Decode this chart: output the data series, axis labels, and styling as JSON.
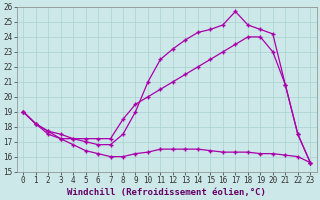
{
  "xlabel": "Windchill (Refroidissement éolien,°C)",
  "background_color": "#cce8e8",
  "grid_color": "#aad0d0",
  "line_color": "#aa00aa",
  "xlim": [
    -0.5,
    23.5
  ],
  "ylim": [
    15,
    26
  ],
  "xticks": [
    0,
    1,
    2,
    3,
    4,
    5,
    6,
    7,
    8,
    9,
    10,
    11,
    12,
    13,
    14,
    15,
    16,
    17,
    18,
    19,
    20,
    21,
    22,
    23
  ],
  "yticks": [
    15,
    16,
    17,
    18,
    19,
    20,
    21,
    22,
    23,
    24,
    25,
    26
  ],
  "line1_x": [
    0,
    1,
    2,
    3,
    4,
    5,
    6,
    7,
    8,
    9,
    10,
    11,
    12,
    13,
    14,
    15,
    16,
    17,
    18,
    19,
    20,
    21,
    22,
    23
  ],
  "line1_y": [
    19.0,
    18.2,
    17.7,
    17.2,
    17.2,
    17.2,
    17.2,
    17.2,
    18.5,
    19.5,
    20.0,
    20.5,
    21.0,
    21.5,
    22.0,
    22.5,
    23.0,
    23.5,
    24.0,
    24.0,
    23.0,
    20.8,
    17.5,
    15.6
  ],
  "line2_x": [
    0,
    1,
    2,
    3,
    4,
    5,
    6,
    7,
    8,
    9,
    10,
    11,
    12,
    13,
    14,
    15,
    16,
    17,
    18,
    19,
    20,
    21,
    22,
    23
  ],
  "line2_y": [
    19.0,
    18.2,
    17.7,
    17.5,
    17.2,
    17.0,
    16.8,
    16.8,
    17.5,
    19.0,
    21.0,
    22.5,
    23.2,
    23.8,
    24.3,
    24.5,
    24.8,
    25.7,
    24.8,
    24.5,
    24.2,
    20.8,
    17.5,
    15.6
  ],
  "line3_x": [
    0,
    1,
    2,
    3,
    4,
    5,
    6,
    7,
    8,
    9,
    10,
    11,
    12,
    13,
    14,
    15,
    16,
    17,
    18,
    19,
    20,
    21,
    22,
    23
  ],
  "line3_y": [
    19.0,
    18.2,
    17.5,
    17.2,
    16.8,
    16.4,
    16.2,
    16.0,
    16.0,
    16.2,
    16.3,
    16.5,
    16.5,
    16.5,
    16.5,
    16.4,
    16.3,
    16.3,
    16.3,
    16.2,
    16.2,
    16.1,
    16.0,
    15.6
  ],
  "marker": "+",
  "markersize": 3,
  "markeredgewidth": 1.0,
  "linewidth": 0.9,
  "tick_fontsize": 5.5,
  "label_fontsize": 6.5
}
